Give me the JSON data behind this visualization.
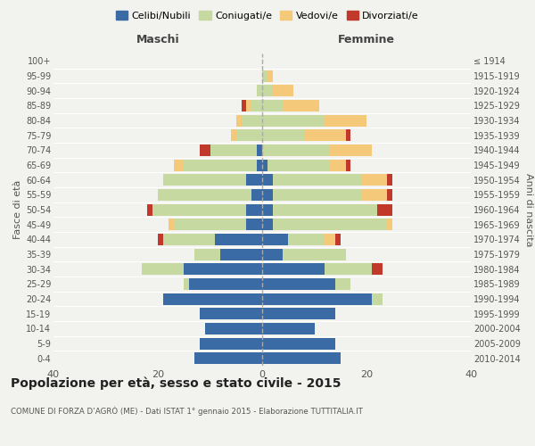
{
  "age_groups": [
    "0-4",
    "5-9",
    "10-14",
    "15-19",
    "20-24",
    "25-29",
    "30-34",
    "35-39",
    "40-44",
    "45-49",
    "50-54",
    "55-59",
    "60-64",
    "65-69",
    "70-74",
    "75-79",
    "80-84",
    "85-89",
    "90-94",
    "95-99",
    "100+"
  ],
  "birth_years": [
    "2010-2014",
    "2005-2009",
    "2000-2004",
    "1995-1999",
    "1990-1994",
    "1985-1989",
    "1980-1984",
    "1975-1979",
    "1970-1974",
    "1965-1969",
    "1960-1964",
    "1955-1959",
    "1950-1954",
    "1945-1949",
    "1940-1944",
    "1935-1939",
    "1930-1934",
    "1925-1929",
    "1920-1924",
    "1915-1919",
    "≤ 1914"
  ],
  "male": {
    "celibi": [
      13,
      12,
      11,
      12,
      19,
      14,
      15,
      8,
      9,
      3,
      3,
      2,
      3,
      1,
      1,
      0,
      0,
      0,
      0,
      0,
      0
    ],
    "coniugati": [
      0,
      0,
      0,
      0,
      0,
      1,
      8,
      5,
      10,
      14,
      18,
      18,
      16,
      14,
      9,
      5,
      4,
      2,
      1,
      0,
      0
    ],
    "vedovi": [
      0,
      0,
      0,
      0,
      0,
      0,
      0,
      0,
      0,
      1,
      0,
      0,
      0,
      2,
      0,
      1,
      1,
      1,
      0,
      0,
      0
    ],
    "divorziati": [
      0,
      0,
      0,
      0,
      0,
      0,
      0,
      0,
      1,
      0,
      1,
      0,
      0,
      0,
      2,
      0,
      0,
      1,
      0,
      0,
      0
    ]
  },
  "female": {
    "nubili": [
      15,
      14,
      10,
      14,
      21,
      14,
      12,
      4,
      5,
      2,
      2,
      2,
      2,
      1,
      0,
      0,
      0,
      0,
      0,
      0,
      0
    ],
    "coniugate": [
      0,
      0,
      0,
      0,
      2,
      3,
      9,
      12,
      7,
      22,
      20,
      17,
      17,
      12,
      13,
      8,
      12,
      4,
      2,
      1,
      0
    ],
    "vedove": [
      0,
      0,
      0,
      0,
      0,
      0,
      0,
      0,
      2,
      1,
      0,
      5,
      5,
      3,
      8,
      8,
      8,
      7,
      4,
      1,
      0
    ],
    "divorziate": [
      0,
      0,
      0,
      0,
      0,
      0,
      2,
      0,
      1,
      0,
      3,
      1,
      1,
      1,
      0,
      1,
      0,
      0,
      0,
      0,
      0
    ]
  },
  "colors": {
    "celibi": "#3a6ba5",
    "coniugati": "#c5d9a0",
    "vedovi": "#f5c97a",
    "divorziati": "#c0392b"
  },
  "xlim": 40,
  "title": "Popolazione per età, sesso e stato civile - 2015",
  "subtitle": "COMUNE DI FORZA D’AGRÒ (ME) - Dati ISTAT 1° gennaio 2015 - Elaborazione TUTTITALIA.IT",
  "ylabel_left": "Fasce di età",
  "ylabel_right": "Anni di nascita",
  "xlabel_left": "Maschi",
  "xlabel_right": "Femmine",
  "bg_color": "#f2f2ee",
  "legend_labels": [
    "Celibi/Nubili",
    "Coniugati/e",
    "Vedovi/e",
    "Divorziati/e"
  ]
}
